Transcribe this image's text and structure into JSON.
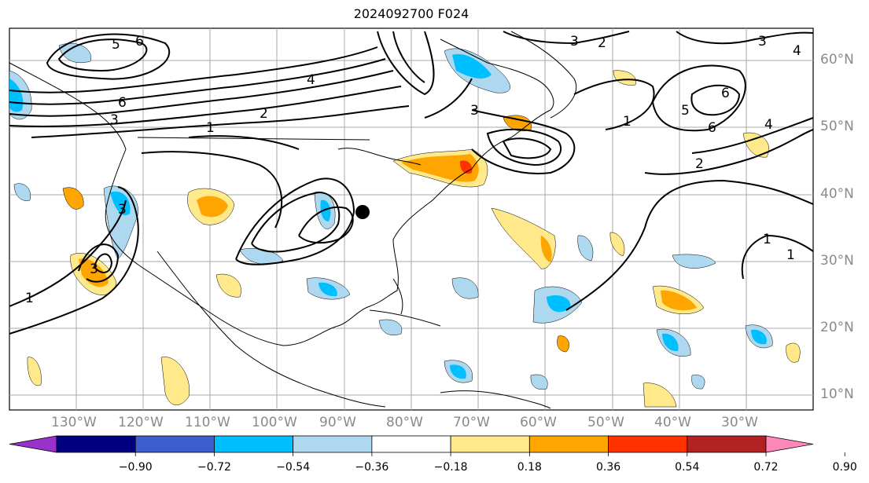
{
  "title": "2024092700 F024",
  "latitude_labels": [
    "60°N",
    "50°N",
    "40°N",
    "30°N",
    "20°N",
    "10°N"
  ],
  "longitude_labels": [
    "130°W",
    "120°W",
    "110°W",
    "100°W",
    "90°W",
    "80°W",
    "70°W",
    "60°W",
    "50°W",
    "40°W",
    "30°W"
  ],
  "contour_labels": [
    "5",
    "6",
    "6",
    "3",
    "4",
    "1",
    "2",
    "3",
    "3",
    "2",
    "3",
    "4",
    "6",
    "5",
    "6",
    "4",
    "1",
    "2",
    "1",
    "1",
    "3",
    "3",
    "1"
  ],
  "colorbar": {
    "ticks": [
      "−0.90",
      "−0.72",
      "−0.54",
      "−0.36",
      "−0.18",
      "0.18",
      "0.36",
      "0.54",
      "0.72",
      "0.90"
    ],
    "colors": [
      "#9932cc",
      "#000080",
      "#3a5fcd",
      "#00bfff",
      "#add8f0",
      "#ffffff",
      "#ffe98a",
      "#ffa500",
      "#ff3300",
      "#b22222",
      "#ff88bb"
    ]
  },
  "colors": {
    "land_outline": "#000000",
    "grid": "#aaaaaa",
    "contour": "#000000",
    "marker": "#000000"
  }
}
